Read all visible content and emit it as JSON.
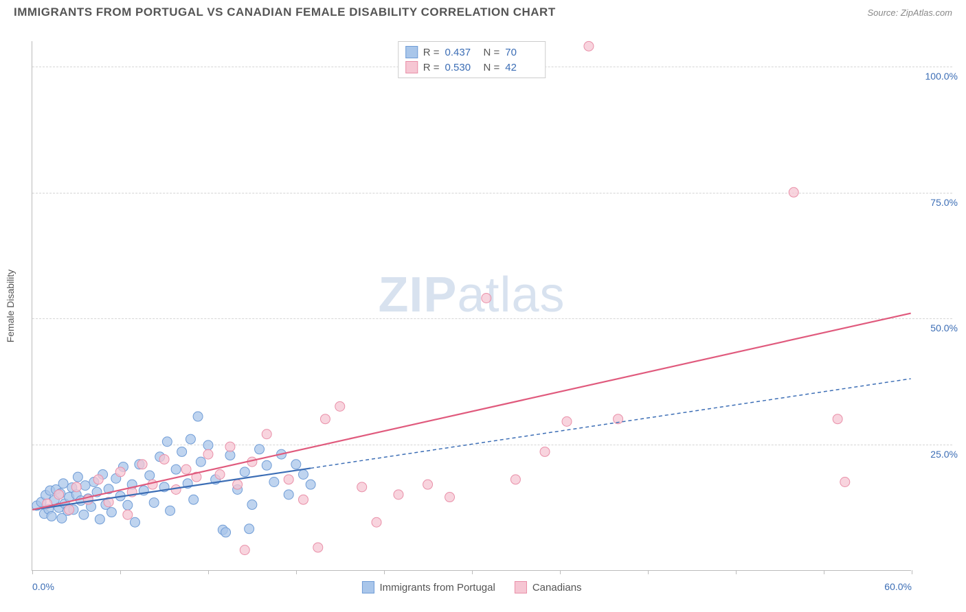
{
  "title": "IMMIGRANTS FROM PORTUGAL VS CANADIAN FEMALE DISABILITY CORRELATION CHART",
  "source": "Source: ZipAtlas.com",
  "watermark_a": "ZIP",
  "watermark_b": "atlas",
  "ylabel": "Female Disability",
  "chart": {
    "type": "scatter",
    "xlim": [
      0,
      60
    ],
    "ylim": [
      0,
      105
    ],
    "x_ticks": [
      0,
      6,
      12,
      18,
      24,
      30,
      36,
      42,
      48,
      54,
      60
    ],
    "x_tick_labels": {
      "0": "0.0%",
      "60": "60.0%"
    },
    "y_gridlines": [
      25,
      50,
      75,
      100
    ],
    "y_tick_labels": {
      "25": "25.0%",
      "50": "50.0%",
      "75": "75.0%",
      "100": "100.0%"
    },
    "background_color": "#ffffff",
    "grid_color": "#d5d5d5",
    "axis_color": "#bbbbbb",
    "tick_label_color": "#3b6db5",
    "series": [
      {
        "name": "Immigrants from Portugal",
        "legend_label": "Immigrants from Portugal",
        "marker_fill": "#a9c6ea",
        "marker_stroke": "#6f9cd6",
        "marker_opacity": 0.75,
        "marker_radius": 7,
        "line_color": "#3b6db5",
        "line_width": 2.2,
        "line_dash_ext": "5,4",
        "R": "0.437",
        "N": "70",
        "trend": {
          "x1": 0,
          "y1": 12,
          "x2": 60,
          "y2": 38,
          "solid_until_x": 19
        },
        "points": [
          [
            0.3,
            12.8
          ],
          [
            0.6,
            13.5
          ],
          [
            0.8,
            11.2
          ],
          [
            0.9,
            14.9
          ],
          [
            1.1,
            12.1
          ],
          [
            1.2,
            15.8
          ],
          [
            1.3,
            10.7
          ],
          [
            1.5,
            13.9
          ],
          [
            1.6,
            16.0
          ],
          [
            1.8,
            12.4
          ],
          [
            1.9,
            15.2
          ],
          [
            2.0,
            10.3
          ],
          [
            2.1,
            17.2
          ],
          [
            2.2,
            13.2
          ],
          [
            2.4,
            11.8
          ],
          [
            2.5,
            14.5
          ],
          [
            2.7,
            16.4
          ],
          [
            2.8,
            12.0
          ],
          [
            3.0,
            15.0
          ],
          [
            3.1,
            18.5
          ],
          [
            3.3,
            13.8
          ],
          [
            3.5,
            11.0
          ],
          [
            3.6,
            16.8
          ],
          [
            3.8,
            14.2
          ],
          [
            4.0,
            12.6
          ],
          [
            4.2,
            17.5
          ],
          [
            4.4,
            15.5
          ],
          [
            4.6,
            10.1
          ],
          [
            4.8,
            19.0
          ],
          [
            5.0,
            13.0
          ],
          [
            5.2,
            16.1
          ],
          [
            5.4,
            11.5
          ],
          [
            5.7,
            18.2
          ],
          [
            6.0,
            14.7
          ],
          [
            6.2,
            20.5
          ],
          [
            6.5,
            12.9
          ],
          [
            6.8,
            17.0
          ],
          [
            7.0,
            9.5
          ],
          [
            7.3,
            21.0
          ],
          [
            7.6,
            15.8
          ],
          [
            8.0,
            18.8
          ],
          [
            8.3,
            13.4
          ],
          [
            8.7,
            22.5
          ],
          [
            9.0,
            16.5
          ],
          [
            9.4,
            11.8
          ],
          [
            9.8,
            20.0
          ],
          [
            10.2,
            23.5
          ],
          [
            10.6,
            17.2
          ],
          [
            11.0,
            14.0
          ],
          [
            11.5,
            21.5
          ],
          [
            12.0,
            24.8
          ],
          [
            12.5,
            18.0
          ],
          [
            13.0,
            8.0
          ],
          [
            13.5,
            22.8
          ],
          [
            14.0,
            16.0
          ],
          [
            14.5,
            19.5
          ],
          [
            15.0,
            13.0
          ],
          [
            15.5,
            24.0
          ],
          [
            16.0,
            20.8
          ],
          [
            16.5,
            17.5
          ],
          [
            17.0,
            23.0
          ],
          [
            17.5,
            15.0
          ],
          [
            18.0,
            21.0
          ],
          [
            18.5,
            19.0
          ],
          [
            19.0,
            17.0
          ],
          [
            11.3,
            30.5
          ],
          [
            13.2,
            7.5
          ],
          [
            14.8,
            8.2
          ],
          [
            9.2,
            25.5
          ],
          [
            10.8,
            26.0
          ]
        ]
      },
      {
        "name": "Canadians",
        "legend_label": "Canadians",
        "marker_fill": "#f6c6d3",
        "marker_stroke": "#e98fa8",
        "marker_opacity": 0.75,
        "marker_radius": 7,
        "line_color": "#e05a7d",
        "line_width": 2.2,
        "R": "0.530",
        "N": "42",
        "trend": {
          "x1": 0,
          "y1": 12,
          "x2": 60,
          "y2": 51
        },
        "points": [
          [
            1.0,
            13.2
          ],
          [
            1.8,
            15.0
          ],
          [
            2.5,
            12.0
          ],
          [
            3.0,
            16.5
          ],
          [
            3.8,
            14.0
          ],
          [
            4.5,
            18.0
          ],
          [
            5.2,
            13.5
          ],
          [
            6.0,
            19.5
          ],
          [
            6.8,
            15.5
          ],
          [
            7.5,
            21.0
          ],
          [
            8.2,
            17.0
          ],
          [
            9.0,
            22.0
          ],
          [
            9.8,
            16.0
          ],
          [
            10.5,
            20.0
          ],
          [
            11.2,
            18.5
          ],
          [
            12.0,
            23.0
          ],
          [
            12.8,
            19.0
          ],
          [
            13.5,
            24.5
          ],
          [
            14.0,
            17.0
          ],
          [
            15.0,
            21.5
          ],
          [
            16.0,
            27.0
          ],
          [
            17.5,
            18.0
          ],
          [
            18.5,
            14.0
          ],
          [
            20.0,
            30.0
          ],
          [
            21.0,
            32.5
          ],
          [
            22.5,
            16.5
          ],
          [
            23.5,
            9.5
          ],
          [
            25.0,
            15.0
          ],
          [
            27.0,
            17.0
          ],
          [
            28.5,
            14.5
          ],
          [
            31.0,
            54.0
          ],
          [
            33.0,
            18.0
          ],
          [
            35.0,
            23.5
          ],
          [
            36.5,
            29.5
          ],
          [
            38.0,
            104.0
          ],
          [
            40.0,
            30.0
          ],
          [
            52.0,
            75.0
          ],
          [
            55.0,
            30.0
          ],
          [
            55.5,
            17.5
          ],
          [
            14.5,
            4.0
          ],
          [
            19.5,
            4.5
          ],
          [
            6.5,
            11.0
          ]
        ]
      }
    ]
  },
  "stats_box": {
    "r_label": "R =",
    "n_label": "N ="
  }
}
